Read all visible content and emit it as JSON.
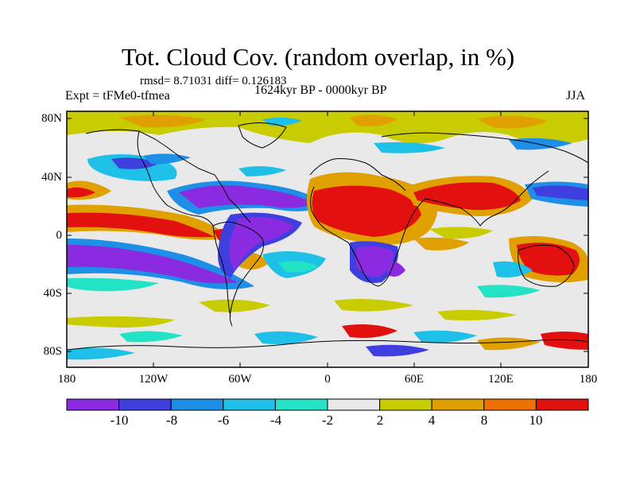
{
  "title": "Tot. Cloud Cov. (random overlap, in %)",
  "stats": "rmsd= 8.71031 diff= 0.126183",
  "experiment": "Expt = tFMe0-tfmea",
  "period": "1624kyr BP - 0000kyr BP",
  "season": "JJA",
  "lat_labels": [
    "80N",
    "40N",
    "0",
    "40S",
    "80S"
  ],
  "lon_labels": [
    "180",
    "120W",
    "60W",
    "0",
    "60E",
    "120E",
    "180"
  ],
  "colorbar": {
    "labels": [
      "-10",
      "-8",
      "-6",
      "-4",
      "-2",
      "2",
      "4",
      "8",
      "10"
    ],
    "colors": [
      "#8a2be2",
      "#3f3fe0",
      "#1e8fe6",
      "#1ec0e8",
      "#22e3c6",
      "#e9e9e9",
      "#c8cc00",
      "#e0a000",
      "#f07000",
      "#e31010"
    ]
  }
}
